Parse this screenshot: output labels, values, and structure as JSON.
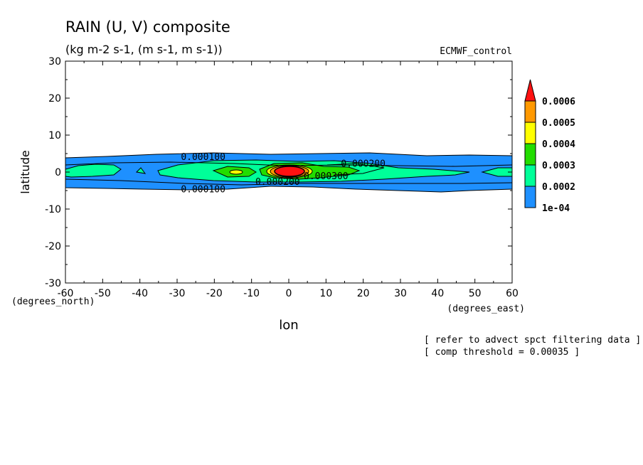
{
  "chart_data": {
    "type": "heatmap",
    "title": "RAIN (U, V) composite",
    "subtitle": "(kg m-2 s-1, (m s-1, m s-1))",
    "dataset_label": "ECMWF_control",
    "xlabel": "lon",
    "ylabel": "latitude",
    "x_units": "(degrees_east)",
    "y_units": "(degrees_north)",
    "xlim": [
      -60,
      60
    ],
    "ylim": [
      -30,
      30
    ],
    "x_ticks": [
      -60,
      -50,
      -40,
      -30,
      -20,
      -10,
      0,
      10,
      20,
      30,
      40,
      50,
      60
    ],
    "y_ticks": [
      -30,
      -20,
      -10,
      0,
      10,
      20,
      30
    ],
    "colorbar": {
      "levels": [
        "1e-04",
        "0.0002",
        "0.0003",
        "0.0004",
        "0.0005",
        "0.0006"
      ],
      "colors": [
        "#1e90ff",
        "#00ff99",
        "#22dd00",
        "#ffff00",
        "#ff9900",
        "#ff1111"
      ]
    },
    "contour_labels": [
      {
        "text": "0.000100",
        "lon": -23,
        "lat": 4.2
      },
      {
        "text": "0.000100",
        "lon": -23,
        "lat": -4.5
      },
      {
        "text": "0.000200",
        "lon": 20,
        "lat": 2.4
      },
      {
        "text": "0.000200",
        "lon": -3,
        "lat": -2.5
      },
      {
        "text": "0.000300",
        "lon": 10,
        "lat": -1
      }
    ]
  },
  "notes": [
    "[ refer to advect spct filtering data ]",
    "[ comp threshold = 0.00035 ]"
  ]
}
